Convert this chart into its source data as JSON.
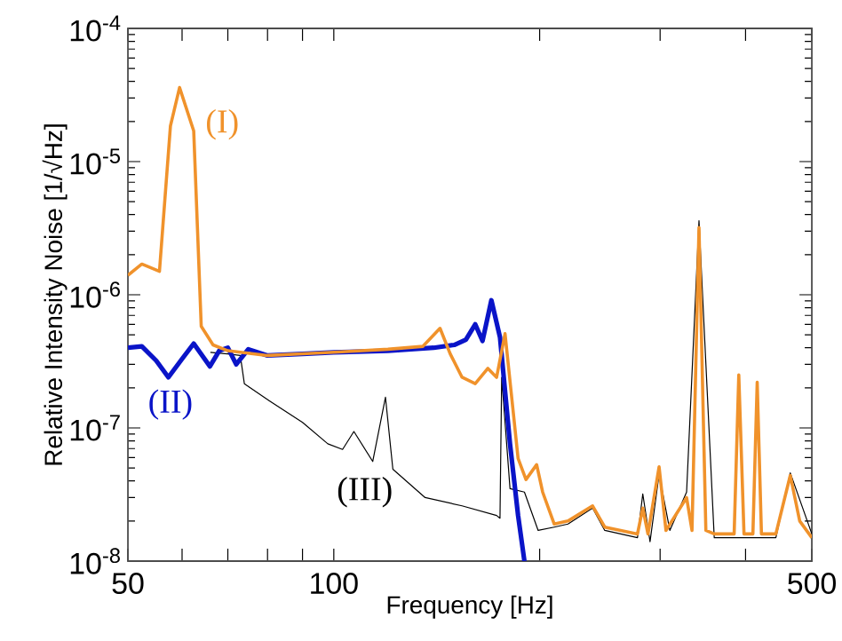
{
  "chart_data": {
    "type": "line",
    "xlabel": "Frequency [Hz]",
    "ylabel": "Relative Intensity Noise [1/√Hz]",
    "log": "xy",
    "grid": false,
    "legend": false,
    "marker": "none",
    "line_style": "solid",
    "xlim": [
      50,
      500
    ],
    "xticks": [
      50,
      100,
      {
        "value": 60,
        "label": null
      },
      {
        "value": 70,
        "label": null
      },
      {
        "value": 80,
        "label": null
      },
      {
        "value": 90,
        "label": null
      },
      {
        "value": 200,
        "label": null
      },
      {
        "value": 300,
        "label": null
      },
      {
        "value": 400,
        "label": null
      },
      500
    ],
    "ylim": [
      1e-08,
      0.0001
    ],
    "yticks": [
      {
        "value": 1e-08,
        "label": "10$^{-8}$"
      },
      {
        "value": 1e-07,
        "label": "10$^{-7}$"
      },
      {
        "value": 1e-06,
        "label": "10$^{-6}$"
      },
      {
        "value": 1e-05,
        "label": "10$^{-5}$"
      },
      {
        "value": 0.0001,
        "label": "10$^{-4}$"
      }
    ],
    "series": [
      {
        "name": "(III)",
        "color": "#000000",
        "x": [
          66,
          70,
          73,
          74,
          80.5,
          90,
          98,
          103,
          107,
          114,
          119,
          122,
          136,
          154,
          173,
          175,
          176,
          181,
          190,
          199,
          210,
          220,
          239,
          249,
          278,
          283,
          290,
          299,
          310,
          328,
          342,
          360,
          391,
          416,
          443,
          465,
          500
        ],
        "values": [
          3.7e-07,
          3.6e-07,
          3.5e-07,
          2.15e-07,
          1.6e-07,
          1.1e-07,
          7.6e-08,
          6.9e-08,
          9.4e-08,
          5.6e-08,
          1.7e-07,
          4.9e-08,
          3e-08,
          2.6e-08,
          2.2e-08,
          2.1e-08,
          2.4e-07,
          3.5e-08,
          3.3e-08,
          1.7e-08,
          1.8e-08,
          1.9e-08,
          2.5e-08,
          1.7e-08,
          1.5e-08,
          3.2e-08,
          1.4e-08,
          4.5e-08,
          1.7e-08,
          3.3e-08,
          3.6e-06,
          1.5e-08,
          1.5e-08,
          1.5e-08,
          1.5e-08,
          4.6e-08,
          1.6e-08
        ]
      },
      {
        "name": "(II)",
        "color": "#0a14c8",
        "x": [
          50,
          52.4,
          55,
          57.3,
          60,
          62.4,
          65,
          65.9,
          68,
          70,
          72,
          75,
          80,
          90,
          100,
          120,
          140,
          150,
          156,
          161,
          165,
          170,
          175,
          181,
          186,
          190
        ],
        "values": [
          4e-07,
          4.1e-07,
          3.2e-07,
          2.4e-07,
          3.3e-07,
          4.3e-07,
          3.2e-07,
          2.9e-07,
          3.8e-07,
          4e-07,
          3e-07,
          3.9e-07,
          3.5e-07,
          3.6e-07,
          3.7e-07,
          3.8e-07,
          4e-07,
          4.2e-07,
          4.6e-07,
          6e-07,
          4.5e-07,
          9.1e-07,
          4.8e-07,
          7.6e-08,
          2.2e-08,
          1e-08
        ]
      },
      {
        "name": "(I)",
        "color": "#f0922b",
        "x": [
          50,
          52.4,
          55.6,
          57.7,
          59.5,
          62.4,
          64,
          66.6,
          70,
          80,
          90,
          100,
          120,
          135,
          143,
          148,
          154,
          161,
          168,
          173,
          178,
          186,
          191,
          198,
          202,
          210,
          220,
          239,
          249,
          278,
          283,
          288,
          299,
          306,
          328,
          334,
          342,
          350,
          360,
          385,
          391,
          398,
          410,
          416,
          422,
          443,
          465,
          480,
          500
        ],
        "values": [
          1.4e-06,
          1.7e-06,
          1.5e-06,
          1.85e-05,
          3.6e-05,
          1.7e-05,
          5.8e-07,
          4.2e-07,
          3.8e-07,
          3.5e-07,
          3.6e-07,
          3.7e-07,
          3.9e-07,
          4.1e-07,
          5.6e-07,
          3.6e-07,
          2.4e-07,
          2.15e-07,
          2.8e-07,
          2.4e-07,
          5.1e-07,
          5.9e-08,
          4.1e-08,
          5.3e-08,
          3.3e-08,
          1.9e-08,
          2e-08,
          2.6e-08,
          1.8e-08,
          1.6e-08,
          2.5e-08,
          1.6e-08,
          5.1e-08,
          1.7e-08,
          3e-08,
          1.7e-08,
          3.2e-06,
          1.7e-08,
          1.6e-08,
          1.6e-08,
          2.5e-07,
          1.6e-08,
          1.6e-08,
          2.2e-07,
          1.6e-08,
          1.6e-08,
          4.4e-08,
          2e-08,
          1.5e-08
        ]
      }
    ]
  }
}
